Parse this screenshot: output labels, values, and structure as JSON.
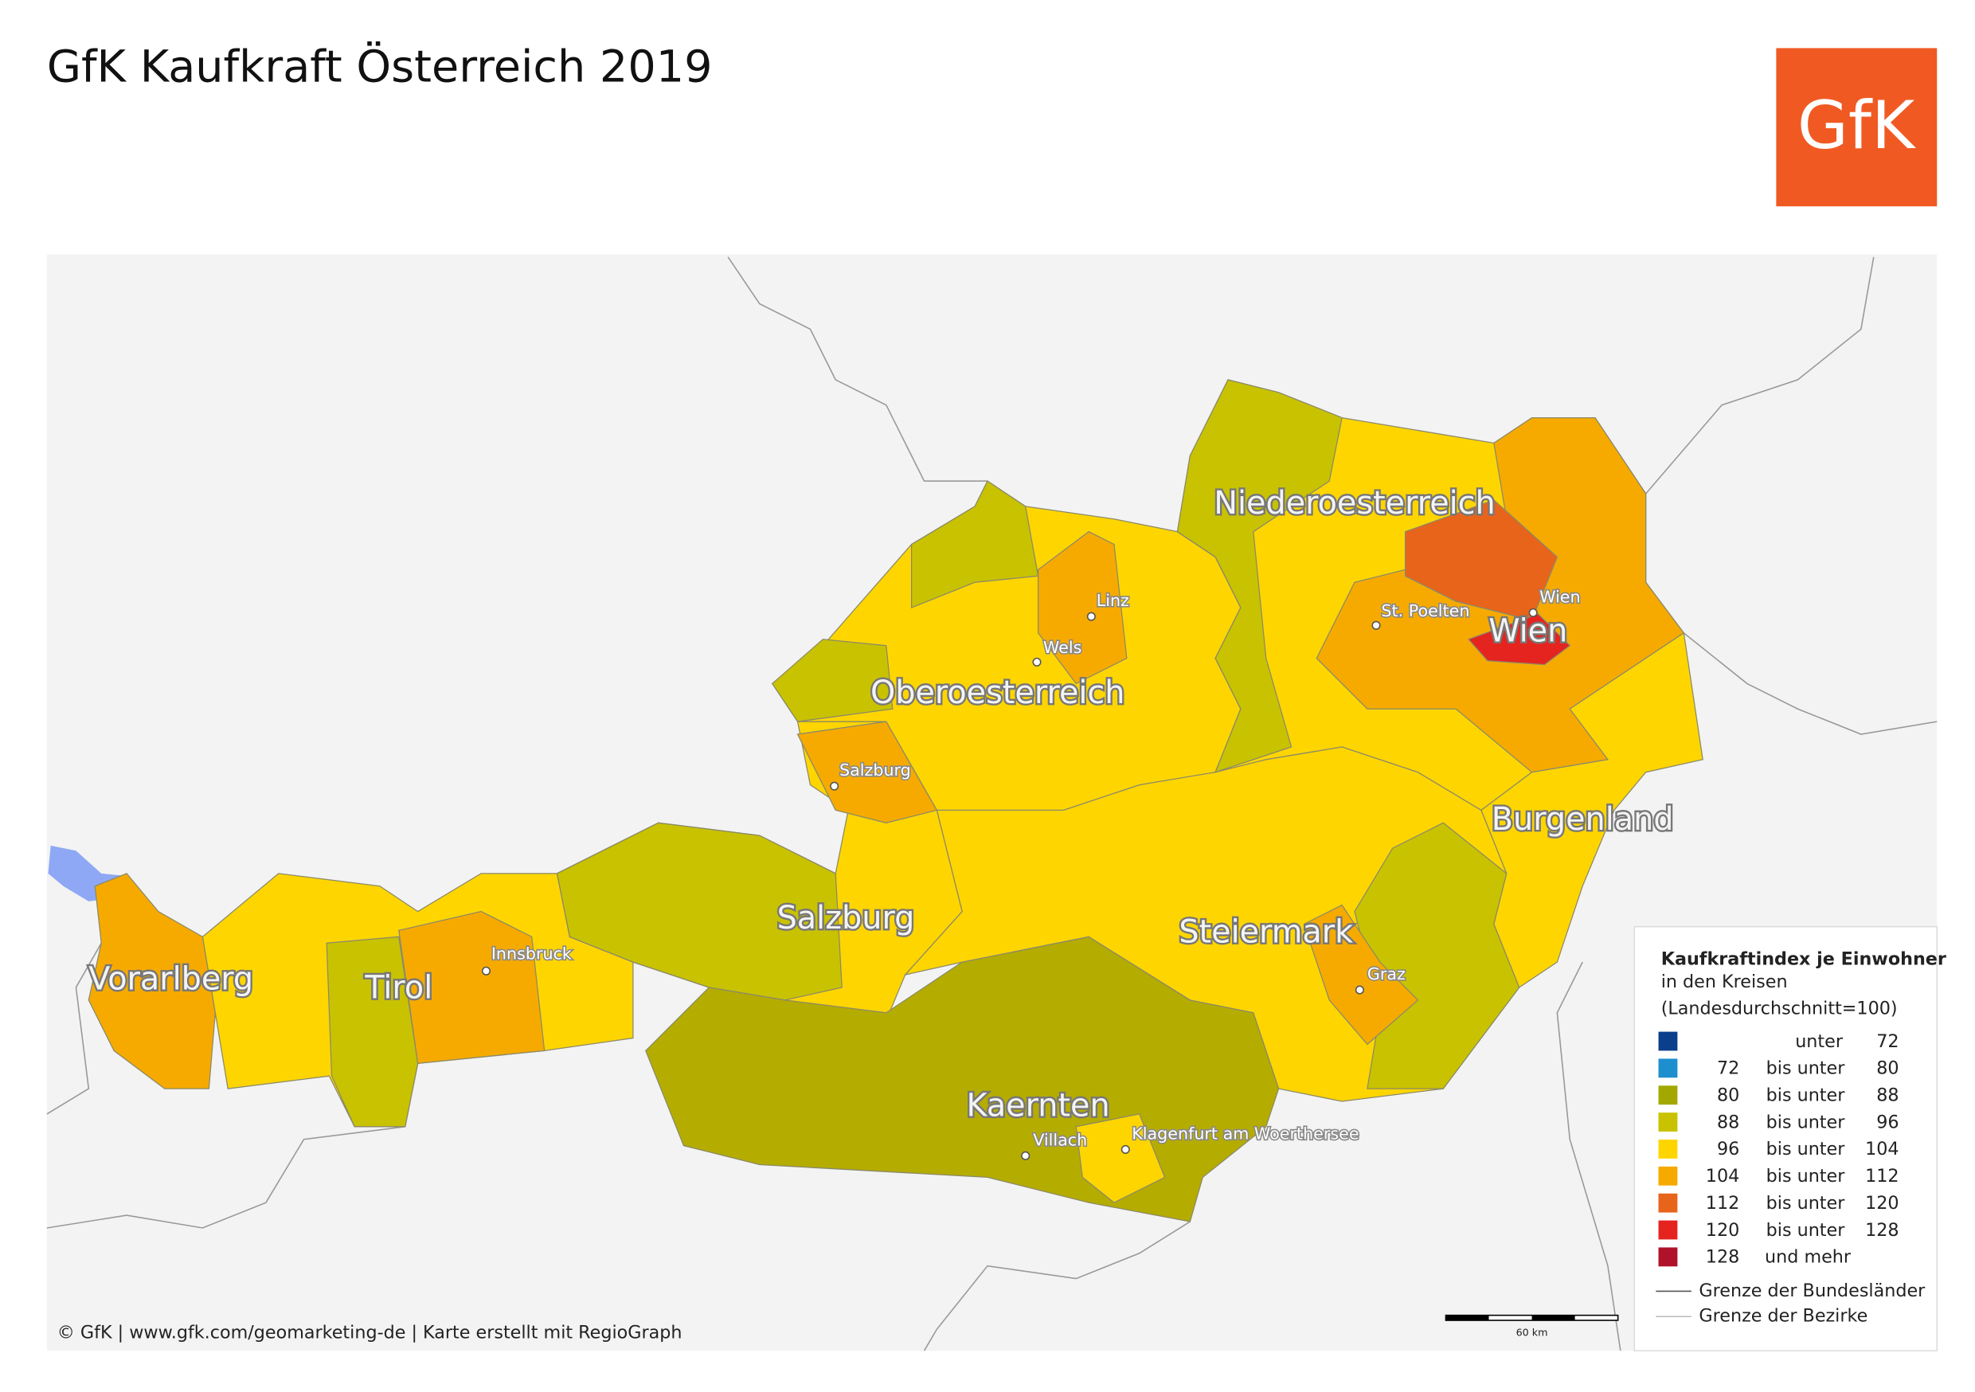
{
  "title": "GfK Kaufkraft Österreich 2019",
  "logo": "GfK",
  "states": [
    "Niederoesterreich",
    "Wien",
    "Oberoesterreich",
    "Salzburg",
    "Burgenland",
    "Steiermark",
    "Vorarlberg",
    "Tirol",
    "Kaernten"
  ],
  "cities": [
    "Linz",
    "Wels",
    "Salzburg",
    "St. Poelten",
    "Wien",
    "Innsbruck",
    "Graz",
    "Villach",
    "Klagenfurt am Woerthersee"
  ],
  "legend": {
    "title": "Kaufkraftindex je Einwohner",
    "subtitle": [
      "in den Kreisen",
      "(Landesdurchschnitt=100)"
    ],
    "classes": [
      {
        "label": "unter",
        "to": 72,
        "color": "#0b3f8c"
      },
      {
        "from": 72,
        "label": "bis unter",
        "to": 80,
        "color": "#1d8fcf"
      },
      {
        "from": 80,
        "label": "bis unter",
        "to": 88,
        "color": "#a3a800"
      },
      {
        "from": 88,
        "label": "bis unter",
        "to": 96,
        "color": "#c9c200"
      },
      {
        "from": 96,
        "label": "bis unter",
        "to": 104,
        "color": "#ffd500"
      },
      {
        "from": 104,
        "label": "bis unter",
        "to": 112,
        "color": "#f6aa00"
      },
      {
        "from": 112,
        "label": "bis unter",
        "to": 120,
        "color": "#e8641b"
      },
      {
        "from": 120,
        "label": "bis unter",
        "to": 128,
        "color": "#e52420"
      },
      {
        "from": 128,
        "label": "und mehr",
        "color": "#b0122a"
      }
    ],
    "borders": [
      "Grenze der Bundesländer",
      "Grenze der Bezirke"
    ]
  },
  "scale": "60 km",
  "credit": "© GfK | www.gfk.com/geomarketing-de | Karte erstellt mit RegioGraph"
}
